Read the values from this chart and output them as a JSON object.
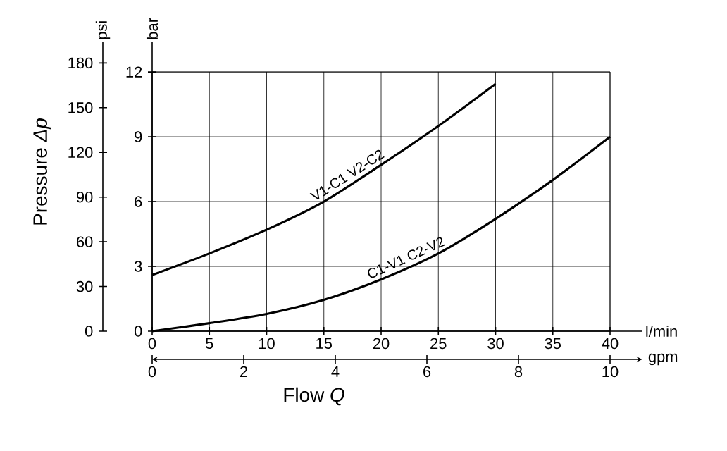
{
  "chart_data": {
    "type": "line",
    "xlabel": "Flow *Q*",
    "ylabel": "Pressure *Δp*",
    "x2label": "gpm",
    "y2label": "bar",
    "annotations": [
      "psi",
      "l/min"
    ],
    "series": [
      {
        "name": "V1-C1  V2-C2",
        "color": "#000000",
        "axis": "y2",
        "x": [
          0,
          5,
          10,
          15,
          20,
          25,
          30
        ],
        "values": [
          2.6,
          3.6,
          4.7,
          6.0,
          7.7,
          9.5,
          11.45
        ]
      },
      {
        "name": "C1-V1  C2-V2",
        "color": "#000000",
        "axis": "y2",
        "x": [
          0,
          5,
          10,
          15,
          20,
          25,
          30,
          35,
          40
        ],
        "values": [
          0,
          0.37,
          0.8,
          1.45,
          2.4,
          3.6,
          5.2,
          7.0,
          9.0
        ]
      }
    ],
    "xlim": [
      0,
      42.8
    ],
    "xticks": [
      0,
      5,
      10,
      15,
      20,
      25,
      30,
      35,
      40
    ],
    "ylim": [
      0,
      194.3
    ],
    "yticks": [
      0,
      30,
      60,
      90,
      120,
      150,
      180
    ],
    "y2lim": [
      0,
      13.4
    ],
    "y2ticks": [
      0,
      3,
      6,
      9,
      12
    ],
    "x2lim": [
      0,
      10.7
    ],
    "x2ticks": [
      0,
      2,
      4,
      6,
      8,
      10
    ],
    "grid": true,
    "marker": "none",
    "line_style": "solid"
  }
}
